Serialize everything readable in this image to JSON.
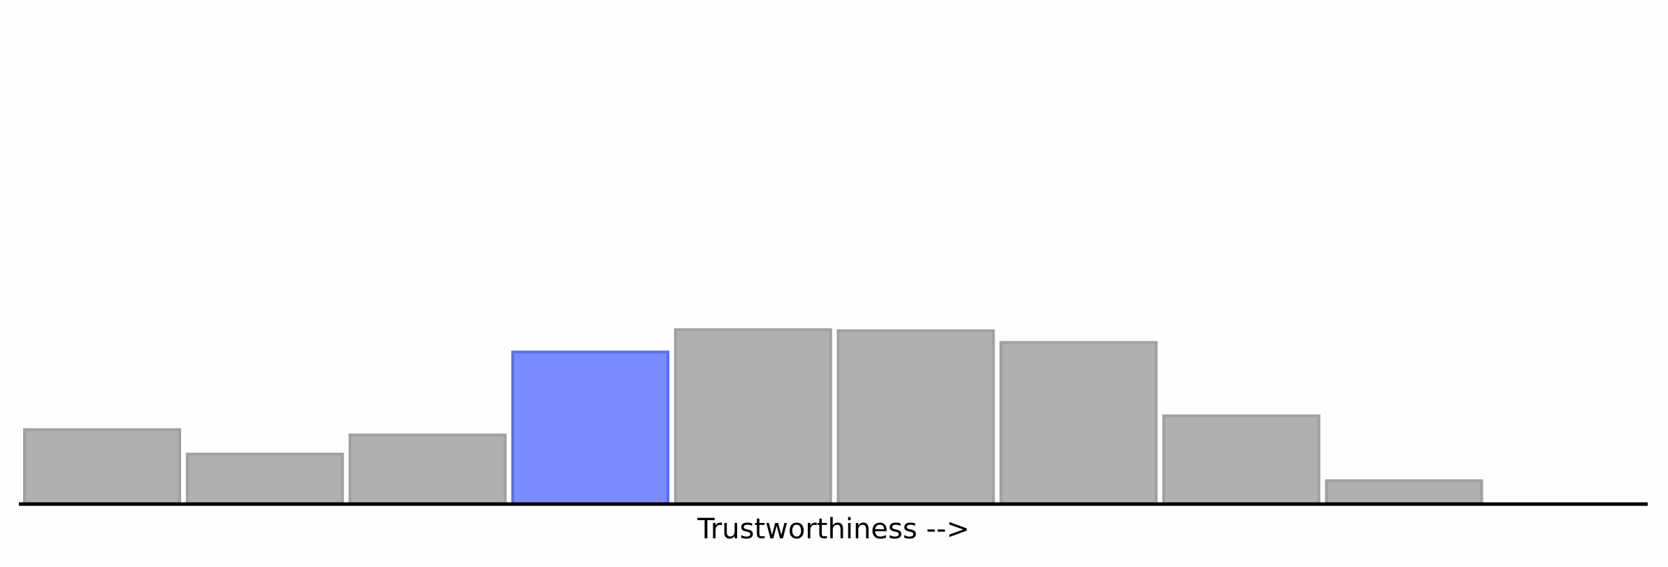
{
  "chart_data": {
    "type": "bar",
    "x_label": "Trustworthiness -->",
    "values": [
      70,
      47,
      65,
      143,
      164,
      163,
      152,
      83,
      22,
      0
    ],
    "colors": [
      "#b0b0b0",
      "#b0b0b0",
      "#b0b0b0",
      "#7a8cff",
      "#b0b0b0",
      "#b0b0b0",
      "#b0b0b0",
      "#b0b0b0",
      "#b0b0b0",
      "#b0b0b0"
    ],
    "edge_colors": [
      "#a0a0a0",
      "#a0a0a0",
      "#a0a0a0",
      "#5b6fe8",
      "#a0a0a0",
      "#a0a0a0",
      "#a0a0a0",
      "#a0a0a0",
      "#a0a0a0",
      "#a0a0a0"
    ],
    "ylim": [
      0,
      474
    ]
  }
}
